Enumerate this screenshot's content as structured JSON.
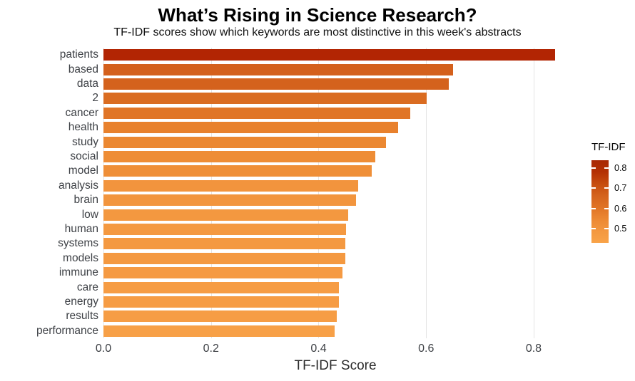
{
  "chart_data": {
    "type": "bar",
    "orientation": "horizontal",
    "title": "What’s Rising in Science Research?",
    "subtitle": "TF-IDF scores show which keywords are most distinctive in this week's abstracts",
    "xlabel": "TF-IDF Score",
    "xlim": [
      0,
      0.8624
    ],
    "xticks": [
      0.0,
      0.2,
      0.4,
      0.6,
      0.8
    ],
    "xtick_labels": [
      "0.0",
      "0.2",
      "0.4",
      "0.6",
      "0.8"
    ],
    "grid": "vertical-only",
    "categories": [
      "patients",
      "based",
      "data",
      "2",
      "cancer",
      "health",
      "study",
      "social",
      "model",
      "analysis",
      "brain",
      "low",
      "human",
      "systems",
      "models",
      "immune",
      "care",
      "energy",
      "results",
      "performance"
    ],
    "values": [
      0.84,
      0.65,
      0.642,
      0.601,
      0.571,
      0.548,
      0.526,
      0.505,
      0.499,
      0.474,
      0.47,
      0.455,
      0.451,
      0.45,
      0.45,
      0.444,
      0.438,
      0.438,
      0.434,
      0.43
    ],
    "bar_colors": [
      "#b22503",
      "#d4601c",
      "#d4621d",
      "#da6c21",
      "#e07527",
      "#e8812d",
      "#eb8832",
      "#ee8d36",
      "#ef8f38",
      "#f2943d",
      "#f2953e",
      "#f39840",
      "#f49941",
      "#f49941",
      "#f49941",
      "#f59a43",
      "#f69c44",
      "#f69c44",
      "#f69d45",
      "#f7a047"
    ],
    "legend": {
      "title": "TF-IDF",
      "position": "right",
      "vmin": 0.43,
      "vmax": 0.839,
      "ticks": [
        0.8,
        0.7,
        0.6,
        0.5
      ],
      "tick_labels": [
        "0.8",
        "0.7",
        "0.6",
        "0.5"
      ],
      "gradient_stops_top_to_bottom": [
        "#a82804",
        "#b43104",
        "#c64c0e",
        "#d4631d",
        "#e07426",
        "#ec8833",
        "#f39840",
        "#f9a348"
      ]
    },
    "colors": {
      "background": "#ffffff",
      "gridline": "#e4e4e4",
      "axis_text": "#3d4045",
      "title_text": "#000000"
    }
  }
}
